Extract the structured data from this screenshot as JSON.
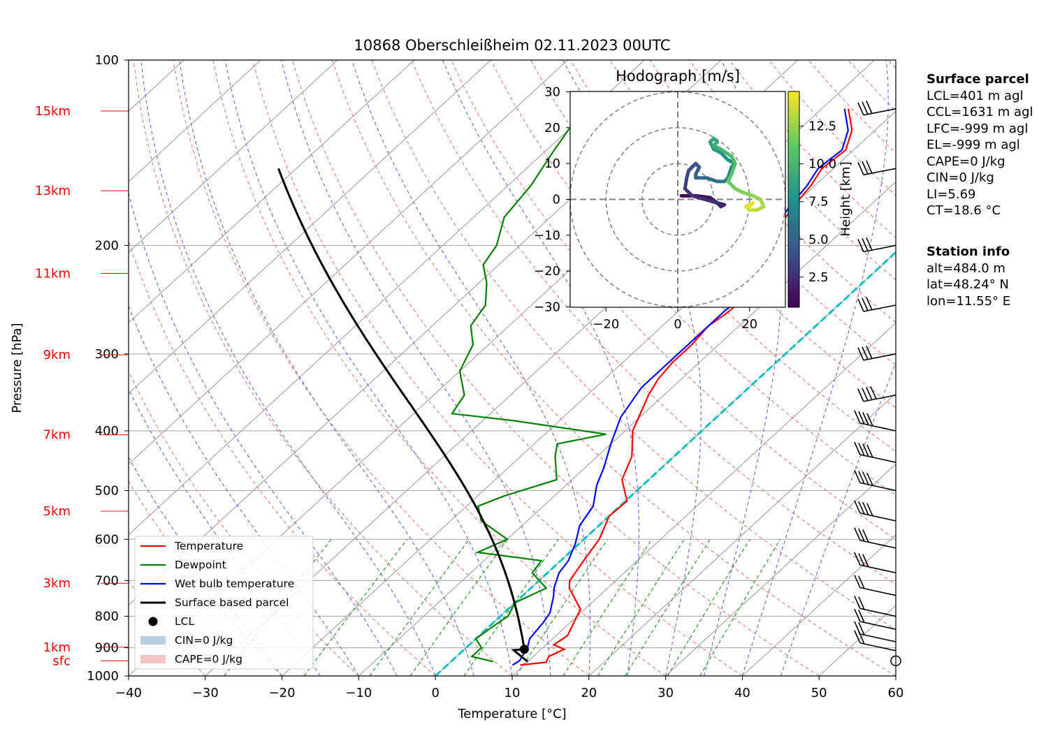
{
  "chart_data": {
    "type": "skew-t",
    "title": "10868 Oberschleißheim 02.11.2023 00UTC",
    "xlabel": "Temperature [°C]",
    "ylabel": "Pressure [hPa]",
    "xlim": [
      -40,
      60
    ],
    "ylim": [
      1000,
      100
    ],
    "x_ticks": [
      -40,
      -30,
      -20,
      -10,
      0,
      10,
      20,
      30,
      40,
      50,
      60
    ],
    "x_tick_labels": [
      "−40",
      "−30",
      "−20",
      "−10",
      "0",
      "10",
      "20",
      "30",
      "40",
      "50",
      "60"
    ],
    "y_ticks": [
      1000,
      900,
      800,
      700,
      600,
      500,
      400,
      300,
      200,
      100
    ],
    "y_tick_labels": [
      "1000",
      "900",
      "800",
      "700",
      "600",
      "500",
      "400",
      "300",
      "200",
      "100"
    ],
    "height_labels": [
      {
        "label": "sfc",
        "p": 945
      },
      {
        "label": "1km",
        "p": 898
      },
      {
        "label": "3km",
        "p": 707
      },
      {
        "label": "5km",
        "p": 540
      },
      {
        "label": "7km",
        "p": 406
      },
      {
        "label": "9km",
        "p": 301
      },
      {
        "label": "11km",
        "p": 222
      },
      {
        "label": "13km",
        "p": 163
      },
      {
        "label": "15km",
        "p": 121
      }
    ],
    "series": [
      {
        "name": "Temperature",
        "color": "#ff0000",
        "points": [
          [
            9.5,
            960
          ],
          [
            12.5,
            950
          ],
          [
            12.0,
            930
          ],
          [
            13.0,
            905
          ],
          [
            11.0,
            890
          ],
          [
            11.5,
            860
          ],
          [
            10.0,
            800
          ],
          [
            9.5,
            780
          ],
          [
            5.0,
            720
          ],
          [
            4.0,
            700
          ],
          [
            3.0,
            650
          ],
          [
            2.0,
            600
          ],
          [
            0.0,
            550
          ],
          [
            0.2,
            520
          ],
          [
            -3.5,
            480
          ],
          [
            -5.5,
            440
          ],
          [
            -9.0,
            400
          ],
          [
            -12.0,
            350
          ],
          [
            -13.0,
            330
          ],
          [
            -13.5,
            310
          ],
          [
            -13.5,
            290
          ],
          [
            -14.0,
            270
          ],
          [
            -13.5,
            260
          ],
          [
            -13.0,
            240
          ],
          [
            -13.5,
            230
          ],
          [
            -14.0,
            215
          ],
          [
            -16.5,
            200
          ],
          [
            -19.0,
            185
          ],
          [
            -20.0,
            170
          ],
          [
            -20.5,
            160
          ],
          [
            -21.5,
            150
          ],
          [
            -21.0,
            140
          ],
          [
            -23.0,
            130
          ],
          [
            -26.5,
            120
          ]
        ]
      },
      {
        "name": "Dewpoint",
        "color": "#008000",
        "points": [
          [
            5.5,
            948
          ],
          [
            2.0,
            930
          ],
          [
            2.0,
            900
          ],
          [
            0.0,
            870
          ],
          [
            0.5,
            830
          ],
          [
            1.0,
            800
          ],
          [
            0.0,
            760
          ],
          [
            2.0,
            720
          ],
          [
            -2.0,
            680
          ],
          [
            -2.5,
            650
          ],
          [
            -12.0,
            630
          ],
          [
            -10.0,
            600
          ],
          [
            -16.0,
            560
          ],
          [
            -18.5,
            530
          ],
          [
            -16.5,
            510
          ],
          [
            -12.0,
            480
          ],
          [
            -15.5,
            440
          ],
          [
            -17.0,
            420
          ],
          [
            -12.0,
            405
          ],
          [
            -26.0,
            385
          ],
          [
            -35.0,
            375
          ],
          [
            -36.0,
            350
          ],
          [
            -40.0,
            320
          ],
          [
            -42.0,
            290
          ],
          [
            -45.0,
            270
          ],
          [
            -46.0,
            250
          ],
          [
            -49.0,
            230
          ],
          [
            -52.0,
            215
          ],
          [
            -53.0,
            200
          ],
          [
            -56.0,
            180
          ],
          [
            -57.0,
            160
          ],
          [
            -59.0,
            140
          ],
          [
            -60.0,
            130
          ],
          [
            -61.0,
            120
          ]
        ]
      },
      {
        "name": "Wet bulb temperature",
        "color": "#0000ff",
        "points": [
          [
            8.5,
            960
          ],
          [
            8.8,
            945
          ],
          [
            8.0,
            900
          ],
          [
            7.0,
            870
          ],
          [
            6.5,
            820
          ],
          [
            6.0,
            790
          ],
          [
            4.0,
            740
          ],
          [
            3.0,
            720
          ],
          [
            1.5,
            680
          ],
          [
            1.0,
            650
          ],
          [
            -0.5,
            610
          ],
          [
            -2.5,
            570
          ],
          [
            -3.5,
            530
          ],
          [
            -6.0,
            490
          ],
          [
            -7.5,
            460
          ],
          [
            -10.0,
            420
          ],
          [
            -12.5,
            380
          ],
          [
            -14.0,
            340
          ],
          [
            -14.0,
            310
          ],
          [
            -14.0,
            280
          ],
          [
            -14.0,
            255
          ],
          [
            -13.5,
            240
          ],
          [
            -14.0,
            230
          ],
          [
            -14.5,
            215
          ],
          [
            -17.0,
            200
          ],
          [
            -19.5,
            185
          ],
          [
            -20.5,
            170
          ],
          [
            -21.0,
            160
          ],
          [
            -22.0,
            150
          ],
          [
            -21.5,
            140
          ],
          [
            -23.5,
            130
          ],
          [
            -27.0,
            120
          ]
        ]
      }
    ],
    "parcel": {
      "name": "Surface based parcel",
      "color": "#000000",
      "surface_temp_c": 10.0,
      "surface_p": 948,
      "lcl_temp_c": 7.8,
      "top_p": 150
    },
    "lcl_marker": {
      "name": "LCL",
      "t": 7.8,
      "p": 905
    },
    "legend_entries": [
      "Temperature",
      "Dewpoint",
      "Wet bulb temperature",
      "Surface based parcel",
      "LCL",
      "CIN=0 J/kg",
      "CAPE=0 J/kg"
    ],
    "legend_position": "lower-left",
    "wind_barbs": [
      {
        "p": 945,
        "speed_kt": 0
      },
      {
        "p": 910,
        "speed_kt": 15
      },
      {
        "p": 880,
        "speed_kt": 15
      },
      {
        "p": 840,
        "speed_kt": 15
      },
      {
        "p": 800,
        "speed_kt": 20
      },
      {
        "p": 740,
        "speed_kt": 20
      },
      {
        "p": 680,
        "speed_kt": 25
      },
      {
        "p": 620,
        "speed_kt": 30
      },
      {
        "p": 560,
        "speed_kt": 35
      },
      {
        "p": 500,
        "speed_kt": 35
      },
      {
        "p": 450,
        "speed_kt": 40
      },
      {
        "p": 400,
        "speed_kt": 40
      },
      {
        "p": 350,
        "speed_kt": 40
      },
      {
        "p": 300,
        "speed_kt": 30
      },
      {
        "p": 250,
        "speed_kt": 30
      },
      {
        "p": 200,
        "speed_kt": 30
      },
      {
        "p": 150,
        "speed_kt": 30
      },
      {
        "p": 120,
        "speed_kt": 30
      }
    ],
    "freezing_line_color": "#00c0c0",
    "hodograph": {
      "title": "Hodograph [m/s]",
      "xlim": [
        -30,
        30
      ],
      "ylim": [
        -30,
        30
      ],
      "ticks": [
        -30,
        -20,
        -10,
        0,
        10,
        20,
        30
      ],
      "x_tick_labels": [
        "−20",
        "0",
        "20"
      ],
      "y_tick_labels": [
        "30",
        "20",
        "10",
        "0",
        "−10",
        "−20",
        "−30"
      ],
      "colorbar_label": "Height [km]",
      "colorbar_ticks": [
        "2.5",
        "5.0",
        "7.5",
        "10.0",
        "12.5"
      ],
      "colorbar_range": [
        0.5,
        14.8
      ],
      "colormap": [
        "#440154",
        "#3b528b",
        "#21918c",
        "#5ec962",
        "#fde725"
      ],
      "points": [
        [
          1,
          1
        ],
        [
          5,
          1
        ],
        [
          9,
          0.5
        ],
        [
          11,
          -1
        ],
        [
          12,
          -2
        ],
        [
          13,
          -1.5
        ],
        [
          11,
          -1
        ],
        [
          4,
          1
        ],
        [
          2,
          3
        ],
        [
          2.5,
          6
        ],
        [
          3,
          8
        ],
        [
          5,
          10
        ],
        [
          6,
          9
        ],
        [
          5,
          7
        ],
        [
          5,
          6
        ],
        [
          8,
          6
        ],
        [
          11,
          5
        ],
        [
          13,
          5
        ],
        [
          14,
          6
        ],
        [
          15,
          9
        ],
        [
          16,
          10
        ],
        [
          14,
          11
        ],
        [
          12,
          13
        ],
        [
          10,
          14
        ],
        [
          9,
          16
        ],
        [
          10,
          17
        ],
        [
          11,
          16
        ],
        [
          10,
          15
        ],
        [
          12,
          14
        ],
        [
          15,
          12
        ],
        [
          16,
          10
        ],
        [
          15,
          7
        ],
        [
          14,
          5
        ],
        [
          16,
          3
        ],
        [
          18,
          2
        ],
        [
          21,
          1
        ],
        [
          23,
          0
        ],
        [
          24,
          -2
        ],
        [
          22,
          -3
        ],
        [
          20,
          -3
        ],
        [
          19,
          -2
        ],
        [
          21,
          -1
        ],
        [
          20,
          -2
        ]
      ]
    }
  },
  "surface_parcel": {
    "header": "Surface parcel",
    "lines": [
      "LCL=401 m agl",
      "CCL=1631 m agl",
      "LFC=-999 m agl",
      "EL=-999 m agl",
      "CAPE=0 J/kg",
      "CIN=0 J/kg",
      "LI=5.69",
      "CT=18.6 °C"
    ]
  },
  "station_info": {
    "header": "Station info",
    "lines": [
      "alt=484.0 m",
      "lat=48.24° N",
      "lon=11.55° E"
    ]
  }
}
